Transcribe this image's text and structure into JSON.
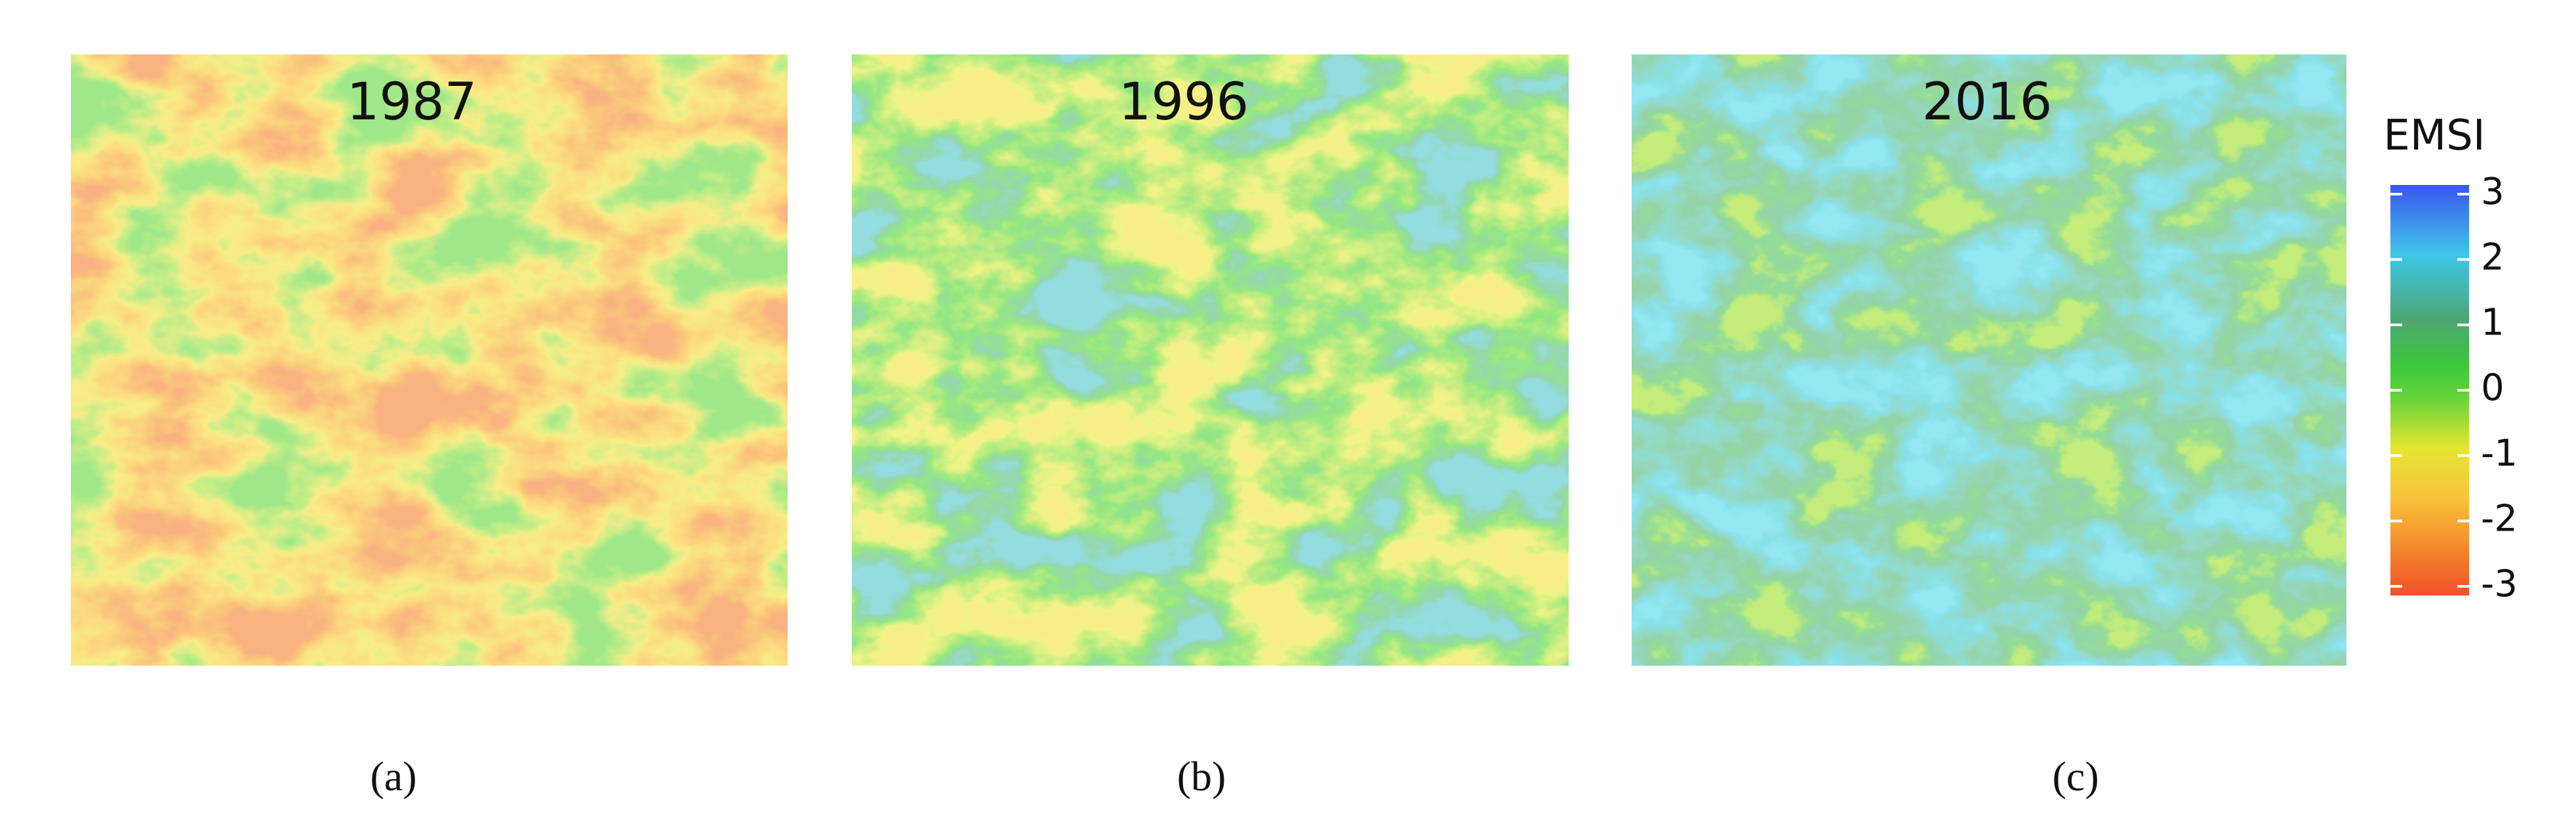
{
  "panels": [
    {
      "year": "1987",
      "caption": "(a)"
    },
    {
      "year": "1996",
      "caption": "(b)"
    },
    {
      "year": "2016",
      "caption": "(c)"
    }
  ],
  "colorbar": {
    "title": "EMSI",
    "ticks": [
      3,
      2,
      1,
      0,
      -1,
      -2,
      -3
    ],
    "lim": [
      -3,
      3
    ]
  }
}
